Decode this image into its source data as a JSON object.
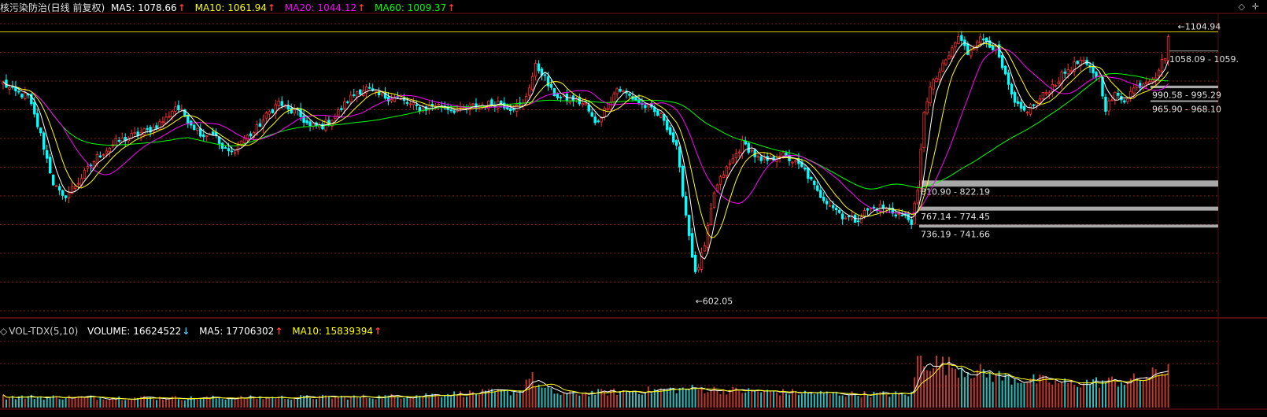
{
  "header": {
    "stock_name": "核污染防治(日线 前复权)",
    "ma5_label": "MA5: 1078.66",
    "ma10_label": "MA10: 1061.94",
    "ma20_label": "MA20: 1044.12",
    "ma60_label": "MA60: 1009.37",
    "up_arrow": "↑",
    "down_arrow": "↓"
  },
  "volume_header": {
    "indicator": "VOL-TDX(5,10)",
    "volume_label": "VOLUME: 16624522",
    "ma5_label": "MA5: 17706302",
    "ma10_label": "MA10: 15839394"
  },
  "colors": {
    "ma5": "#ffffff",
    "ma10": "#ffff00",
    "ma20": "#ff00ff",
    "ma60": "#00ff00",
    "up_candle": "#ff3030",
    "down_candle": "#00ffff",
    "grid": "#8b1a1a",
    "volume_up": "#c0392b",
    "volume_down": "#2bbcbc"
  },
  "chart_data": {
    "type": "line",
    "series": [
      {
        "name": "MA5",
        "value": 1078.66
      },
      {
        "name": "MA10",
        "value": 1061.94
      },
      {
        "name": "MA20",
        "value": 1044.12
      },
      {
        "name": "MA60",
        "value": 1009.37
      }
    ],
    "ylim": [
      580,
      1120
    ],
    "grid": true,
    "high_label": "1104.94",
    "low_label": "602.05",
    "high": 1104.94,
    "low": 602.05,
    "price_ranges": [
      {
        "label": "1058.09 - 1059.",
        "low": 1058.09,
        "high": 1059
      },
      {
        "label": "990.58 - 995.29",
        "low": 990.58,
        "high": 995.29
      },
      {
        "label": "965.90 - 968.10",
        "low": 965.9,
        "high": 968.1
      },
      {
        "label": "810.90 - 822.19",
        "low": 810.9,
        "high": 822.19
      },
      {
        "label": "767.14 - 774.45",
        "low": 767.14,
        "high": 774.45
      },
      {
        "label": "736.19 - 741.66",
        "low": 736.19,
        "high": 741.66
      }
    ],
    "close_anchors": [
      [
        0,
        1000
      ],
      [
        3,
        985
      ],
      [
        8,
        975
      ],
      [
        12,
        905
      ],
      [
        16,
        818
      ],
      [
        19,
        790
      ],
      [
        24,
        820
      ],
      [
        30,
        865
      ],
      [
        36,
        892
      ],
      [
        42,
        905
      ],
      [
        48,
        918
      ],
      [
        52,
        935
      ],
      [
        55,
        958
      ],
      [
        58,
        940
      ],
      [
        61,
        920
      ],
      [
        64,
        905
      ],
      [
        67,
        910
      ],
      [
        70,
        880
      ],
      [
        73,
        872
      ],
      [
        76,
        895
      ],
      [
        80,
        910
      ],
      [
        84,
        940
      ],
      [
        88,
        965
      ],
      [
        91,
        950
      ],
      [
        94,
        945
      ],
      [
        98,
        920
      ],
      [
        102,
        922
      ],
      [
        106,
        940
      ],
      [
        110,
        968
      ],
      [
        113,
        985
      ],
      [
        116,
        990
      ],
      [
        119,
        978
      ],
      [
        122,
        975
      ],
      [
        126,
        972
      ],
      [
        130,
        960
      ],
      [
        134,
        952
      ],
      [
        138,
        960
      ],
      [
        142,
        955
      ],
      [
        146,
        948
      ],
      [
        150,
        958
      ],
      [
        154,
        960
      ],
      [
        158,
        965
      ],
      [
        162,
        955
      ],
      [
        166,
        960
      ],
      [
        170,
        1030
      ],
      [
        172,
        1020
      ],
      [
        175,
        985
      ],
      [
        178,
        972
      ],
      [
        182,
        970
      ],
      [
        186,
        960
      ],
      [
        189,
        925
      ],
      [
        192,
        950
      ],
      [
        196,
        990
      ],
      [
        199,
        980
      ],
      [
        203,
        965
      ],
      [
        207,
        950
      ],
      [
        211,
        935
      ],
      [
        215,
        880
      ],
      [
        218,
        760
      ],
      [
        221,
        650
      ],
      [
        224,
        700
      ],
      [
        227,
        800
      ],
      [
        230,
        835
      ],
      [
        233,
        860
      ],
      [
        236,
        890
      ],
      [
        239,
        875
      ],
      [
        242,
        855
      ],
      [
        245,
        860
      ],
      [
        248,
        870
      ],
      [
        252,
        858
      ],
      [
        256,
        840
      ],
      [
        260,
        800
      ],
      [
        264,
        780
      ],
      [
        268,
        758
      ],
      [
        272,
        750
      ],
      [
        276,
        768
      ],
      [
        280,
        774
      ],
      [
        284,
        765
      ],
      [
        288,
        755
      ],
      [
        290,
        748
      ],
      [
        292,
        800
      ],
      [
        294,
        950
      ],
      [
        296,
        990
      ],
      [
        299,
        1020
      ],
      [
        302,
        1050
      ],
      [
        305,
        1085
      ],
      [
        308,
        1055
      ],
      [
        311,
        1080
      ],
      [
        314,
        1078
      ],
      [
        317,
        1060
      ],
      [
        320,
        1010
      ],
      [
        323,
        960
      ],
      [
        326,
        948
      ],
      [
        330,
        965
      ],
      [
        335,
        995
      ],
      [
        340,
        1025
      ],
      [
        344,
        1040
      ],
      [
        347,
        1025
      ],
      [
        350,
        1010
      ],
      [
        352,
        955
      ],
      [
        355,
        978
      ],
      [
        358,
        970
      ],
      [
        361,
        990
      ],
      [
        365,
        1005
      ],
      [
        368,
        1015
      ],
      [
        371,
        1050
      ],
      [
        372,
        1085
      ]
    ],
    "volume": {
      "latest": 16624522,
      "ma5": 17706302,
      "ma10": 15839394,
      "levels": [
        [
          0,
          4.0
        ],
        [
          60,
          3.5
        ],
        [
          120,
          4.0
        ],
        [
          165,
          6.0
        ],
        [
          168,
          12.0
        ],
        [
          172,
          7.0
        ],
        [
          178,
          5.0
        ],
        [
          220,
          7.0
        ],
        [
          240,
          6.0
        ],
        [
          270,
          5.0
        ],
        [
          290,
          5.0
        ],
        [
          292,
          18.0
        ],
        [
          300,
          16.0
        ],
        [
          320,
          11.0
        ],
        [
          340,
          9.0
        ],
        [
          360,
          10.0
        ],
        [
          370,
          13.0
        ],
        [
          372,
          16.6
        ]
      ],
      "ylim": [
        0,
        28
      ]
    }
  }
}
